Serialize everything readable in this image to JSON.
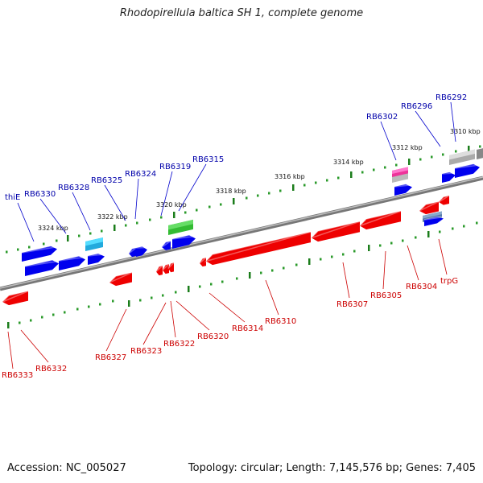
{
  "title": "Rhodopirellula baltica SH 1, complete genome",
  "footer": {
    "accession": "Accession: NC_005027",
    "topology": "Topology: circular; Length: 7,145,576 bp; Genes: 7,405"
  },
  "colors": {
    "forward_gene": "#0000ee",
    "reverse_gene": "#ee0000",
    "forward_label": "#0000aa",
    "reverse_label": "#cc0000",
    "backbone": "#888888",
    "tick": "#1a7a1a",
    "rna_green": "#33bb33",
    "cyan_feature": "#22aadd",
    "grey_feature": "#aaaaaa",
    "pink_feature": "#ee3399",
    "steel_feature": "#5577aa"
  },
  "scale": {
    "unit": "kbp",
    "labels": [
      "3324 kbp",
      "3322 kbp",
      "3320 kbp",
      "3318 kbp",
      "3316 kbp",
      "3314 kbp",
      "3312 kbp",
      "3310 kbp"
    ]
  },
  "forward_genes": [
    {
      "label": "thiE"
    },
    {
      "label": "RB6330"
    },
    {
      "label": "RB6328"
    },
    {
      "label": "RB6325"
    },
    {
      "label": "RB6324"
    },
    {
      "label": "RB6319"
    },
    {
      "label": "RB6315"
    },
    {
      "label": "RB6302"
    },
    {
      "label": "RB6296"
    },
    {
      "label": "RB6292"
    }
  ],
  "reverse_genes": [
    {
      "label": "RB6333"
    },
    {
      "label": "RB6332"
    },
    {
      "label": "RB6327"
    },
    {
      "label": "RB6323"
    },
    {
      "label": "RB6322"
    },
    {
      "label": "RB6320"
    },
    {
      "label": "RB6314"
    },
    {
      "label": "RB6310"
    },
    {
      "label": "RB6307"
    },
    {
      "label": "RB6305"
    },
    {
      "label": "RB6304"
    },
    {
      "label": "trpG"
    }
  ]
}
